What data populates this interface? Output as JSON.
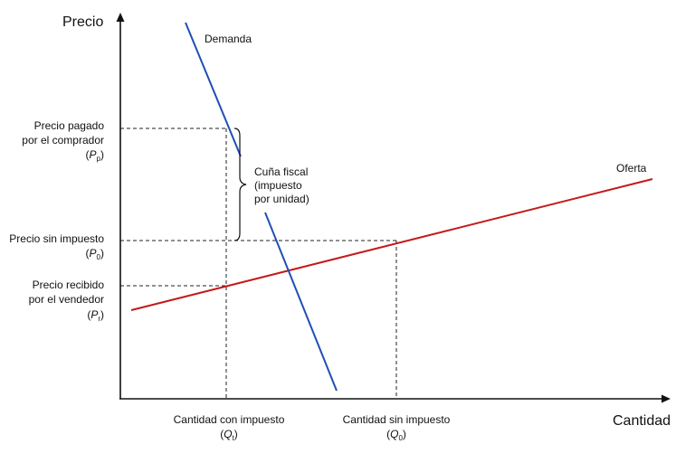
{
  "axes": {
    "y_title": "Precio",
    "x_title": "Cantidad"
  },
  "curves": {
    "demand_label": "Demanda",
    "supply_label": "Oferta",
    "demand_color": "#1f4fb5",
    "supply_color": "#c41a1a"
  },
  "price_labels": {
    "pp_line1": "Precio pagado",
    "pp_line2": "por el comprador",
    "pp_symbol": "P",
    "pp_sub": "p",
    "p0_line1": "Precio sin impuesto",
    "p0_symbol": "P",
    "p0_sub": "0",
    "pr_line1": "Precio recibido",
    "pr_line2": "por el vendedor",
    "pr_symbol": "P",
    "pr_sub": "r"
  },
  "quantity_labels": {
    "qt_line1": "Cantidad con impuesto",
    "qt_symbol": "Q",
    "qt_sub": "t",
    "q0_line1": "Cantidad sin impuesto",
    "q0_symbol": "Q",
    "q0_sub": "0"
  },
  "wedge": {
    "line1": "Cuña fiscal",
    "line2": "(impuesto",
    "line3": "por unidad)"
  },
  "paren_open": "(",
  "paren_close": ")"
}
